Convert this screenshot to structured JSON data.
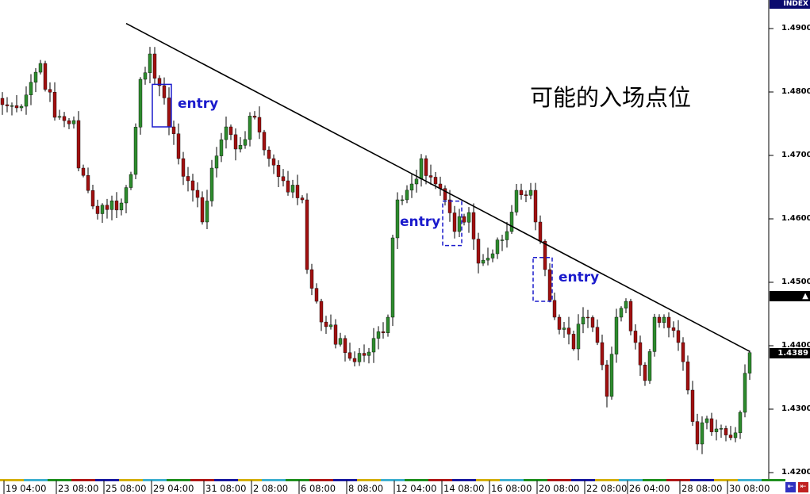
{
  "chart_data": {
    "type": "candlestick",
    "indicator_label": "INDEX",
    "title": "可能的入场点位",
    "y_ticks": [
      "1.4900",
      "1.4800",
      "1.4700",
      "1.4600",
      "1.4500",
      "1.4400",
      "1.4300",
      "1.4200"
    ],
    "ylim": [
      1.419,
      1.4945
    ],
    "x_ticks": [
      "19 04:00",
      "23 08:00",
      "25 08:00",
      "29 04:00",
      "31 08:00",
      "2 08:00",
      "6 08:00",
      "8 08:00",
      "12 04:00",
      "14 08:00",
      "16 08:00",
      "20 08:00",
      "22 08:00",
      "26 04:00",
      "28 08:00",
      "30 08:00"
    ],
    "x_tick_candle_index": [
      1,
      12,
      22,
      32,
      43,
      53,
      63,
      73,
      83,
      93,
      103,
      113,
      123,
      132,
      143,
      153
    ],
    "price_badges": [
      {
        "value": "1.4479",
        "marker": "▲"
      },
      {
        "value": "1.4389",
        "marker": ""
      }
    ],
    "close_waypoints": [
      [
        0,
        1.478
      ],
      [
        3,
        1.4775
      ],
      [
        8,
        1.4845
      ],
      [
        11,
        1.476
      ],
      [
        15,
        1.4755
      ],
      [
        16,
        1.468
      ],
      [
        19,
        1.462
      ],
      [
        25,
        1.4625
      ],
      [
        27,
        1.467
      ],
      [
        29,
        1.482
      ],
      [
        31,
        1.486
      ],
      [
        33,
        1.481
      ],
      [
        35,
        1.4745
      ],
      [
        37,
        1.4695
      ],
      [
        40,
        1.4645
      ],
      [
        42,
        1.4595
      ],
      [
        44,
        1.468
      ],
      [
        47,
        1.4745
      ],
      [
        49,
        1.471
      ],
      [
        53,
        1.476
      ],
      [
        56,
        1.4695
      ],
      [
        59,
        1.466
      ],
      [
        63,
        1.463
      ],
      [
        64,
        1.452
      ],
      [
        66,
        1.447
      ],
      [
        68,
        1.443
      ],
      [
        73,
        1.438
      ],
      [
        77,
        1.439
      ],
      [
        81,
        1.4445
      ],
      [
        82,
        1.457
      ],
      [
        83,
        1.463
      ],
      [
        86,
        1.4655
      ],
      [
        88,
        1.4695
      ],
      [
        91,
        1.4655
      ],
      [
        93,
        1.463
      ],
      [
        95,
        1.458
      ],
      [
        98,
        1.461
      ],
      [
        100,
        1.453
      ],
      [
        103,
        1.4545
      ],
      [
        106,
        1.458
      ],
      [
        108,
        1.4645
      ],
      [
        111,
        1.4645
      ],
      [
        112,
        1.4595
      ],
      [
        114,
        1.452
      ],
      [
        116,
        1.4445
      ],
      [
        120,
        1.4395
      ],
      [
        122,
        1.4445
      ],
      [
        125,
        1.4405
      ],
      [
        127,
        1.432
      ],
      [
        129,
        1.4445
      ],
      [
        131,
        1.447
      ],
      [
        133,
        1.4405
      ],
      [
        135,
        1.4345
      ],
      [
        137,
        1.4445
      ],
      [
        139,
        1.4445
      ],
      [
        142,
        1.4405
      ],
      [
        144,
        1.433
      ],
      [
        146,
        1.4245
      ],
      [
        148,
        1.4285
      ],
      [
        153,
        1.4255
      ],
      [
        155,
        1.4295
      ],
      [
        157,
        1.4389
      ]
    ],
    "trendline": [
      [
        26,
        1.4908
      ],
      [
        157,
        1.4391
      ]
    ],
    "annotations": [
      {
        "label": "entry",
        "box": [
          [
            32,
            1.4812
          ],
          [
            35,
            1.4745
          ]
        ],
        "style": "solid"
      },
      {
        "label": "entry",
        "box": [
          [
            93,
            1.4628
          ],
          [
            96,
            1.4558
          ]
        ],
        "style": "dashed"
      },
      {
        "label": "entry",
        "box": [
          [
            112,
            1.4539
          ],
          [
            115,
            1.447
          ]
        ],
        "style": "dashed"
      }
    ],
    "colors": {
      "up": "#2e8b2e",
      "down": "#a01010",
      "wick": "#000000",
      "trendline": "#000000",
      "annotation": "#1a1acc"
    }
  }
}
